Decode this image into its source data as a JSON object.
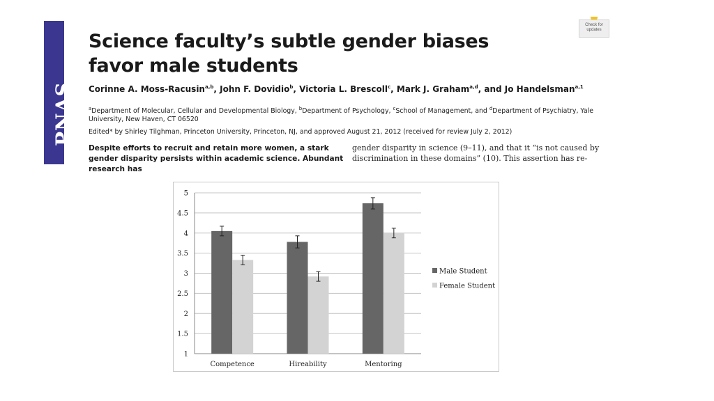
{
  "journal": {
    "logo": "PNAS",
    "crossmark_label": "Check for updates"
  },
  "paper": {
    "title": "Science faculty’s subtle gender biases favor male students",
    "authors_html": "Corinne A. Moss-Racusin<sup>a,b</sup>, John F. Dovidio<sup>b</sup>, Victoria L. Brescoll<sup>c</sup>, Mark J. Graham<sup>a,d</sup>, and Jo Handelsman<sup>a,1</sup>",
    "affiliations_html": "<sup>a</sup>Department of Molecular, Cellular and Developmental Biology, <sup>b</sup>Department of Psychology, <sup>c</sup>School of Management, and <sup>d</sup>Department of Psychiatry, Yale University, New Haven, CT 06520",
    "edited": "Edited* by Shirley Tilghman, Princeton University, Princeton, NJ, and approved August 21, 2012 (received for review July 2, 2012)",
    "abstract_left": "Despite efforts to recruit and retain more women, a stark gender disparity persists within academic science. Abundant research has",
    "abstract_right": "gender disparity in science (9–11), and that it “is not caused by discrimination in these domains” (10). This assertion has re-"
  },
  "chart_data": {
    "type": "bar",
    "categories": [
      "Competence",
      "Hireability",
      "Mentoring"
    ],
    "series": [
      {
        "name": "Male Student",
        "color": "#666666",
        "values": [
          4.05,
          3.78,
          4.74
        ],
        "error": [
          0.12,
          0.15,
          0.14
        ]
      },
      {
        "name": "Female Student",
        "color": "#d3d3d3",
        "values": [
          3.33,
          2.92,
          4.0
        ],
        "error": [
          0.12,
          0.12,
          0.12
        ]
      }
    ],
    "ylim": [
      1,
      5
    ],
    "yticks": [
      "1",
      "1.5",
      "2",
      "2.5",
      "3",
      "3.5",
      "4",
      "4.5",
      "5"
    ],
    "grid": true,
    "legend_position": "right"
  }
}
